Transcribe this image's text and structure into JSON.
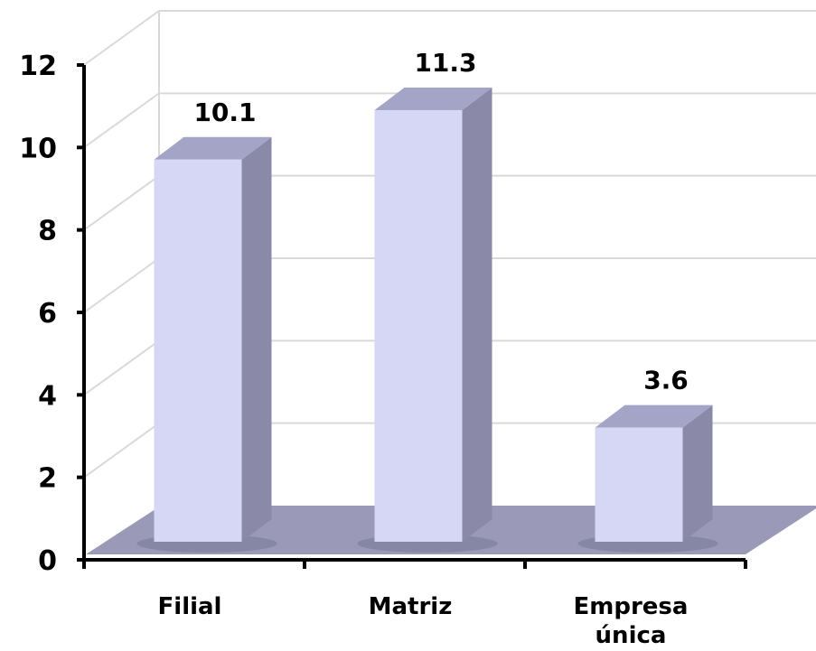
{
  "chart_data": {
    "type": "bar",
    "style": "3d-column",
    "categories": [
      [
        "Filial"
      ],
      [
        "Matriz"
      ],
      [
        "Empresa",
        "única"
      ]
    ],
    "values": [
      10.1,
      11.3,
      3.6
    ],
    "value_labels": [
      "10.1",
      "11.3",
      "3.6"
    ],
    "ylim": [
      0,
      12
    ],
    "yticks": [
      0,
      2,
      4,
      6,
      8,
      10,
      12
    ],
    "grid": true,
    "legend": "none",
    "colors": {
      "bar_front": "#d6d6f5",
      "bar_side": "#8a8aa8",
      "bar_top": "#a4a4c6",
      "floor": "#9a9ab8",
      "grid": "#d9d9d9"
    }
  }
}
